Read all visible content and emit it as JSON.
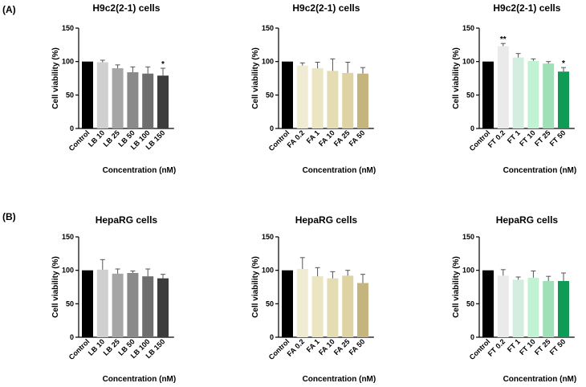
{
  "figure": {
    "row_labels": [
      "(A)",
      "(B)"
    ]
  },
  "chart_data": [
    {
      "type": "bar",
      "row": "A",
      "col": 0,
      "title": "H9c2(2-1) cells",
      "xlabel": "Concentration (nM)",
      "ylabel": "Cell viability (%)",
      "ylim": [
        0,
        150
      ],
      "yticks": [
        0,
        50,
        100,
        150
      ],
      "categories": [
        "Control",
        "LB 10",
        "LB 25",
        "LB 50",
        "LB 100",
        "LB 150"
      ],
      "values": [
        100,
        99,
        90,
        84,
        82,
        79
      ],
      "errors": [
        0,
        3,
        5,
        8,
        10,
        11
      ],
      "significance": [
        "",
        "",
        "",
        "",
        "",
        "*"
      ],
      "colors": [
        "#000000",
        "#d0d0d0",
        "#a6a6a6",
        "#8a8a8a",
        "#6e6e6e",
        "#3c3c3c"
      ]
    },
    {
      "type": "bar",
      "row": "A",
      "col": 1,
      "title": "H9c2(2-1) cells",
      "xlabel": "Concentration (nM)",
      "ylabel": "Cell viability (%)",
      "ylim": [
        0,
        150
      ],
      "yticks": [
        0,
        50,
        100,
        150
      ],
      "categories": [
        "Control",
        "FA 0.2",
        "FA 1",
        "FA 10",
        "FA 25",
        "FA 50"
      ],
      "values": [
        100,
        94,
        90,
        86,
        83,
        82
      ],
      "errors": [
        0,
        4,
        9,
        18,
        16,
        9
      ],
      "significance": [
        "",
        "",
        "",
        "",
        "",
        ""
      ],
      "colors": [
        "#000000",
        "#f0ecd4",
        "#ebe5c2",
        "#e4dcb2",
        "#ddd3a3",
        "#c6b47e"
      ]
    },
    {
      "type": "bar",
      "row": "A",
      "col": 2,
      "title": "H9c2(2-1) cells",
      "xlabel": "Concentration (nM)",
      "ylabel": "Cell viability (%)",
      "ylim": [
        0,
        150
      ],
      "yticks": [
        0,
        50,
        100,
        150
      ],
      "categories": [
        "Control",
        "FT 0.2",
        "FT 1",
        "FT 10",
        "FT 25",
        "FT 50"
      ],
      "values": [
        100,
        123,
        106,
        101,
        97,
        85
      ],
      "errors": [
        0,
        4,
        6,
        3,
        3,
        6
      ],
      "significance": [
        "",
        "**",
        "",
        "",
        "",
        "*"
      ],
      "colors": [
        "#000000",
        "#eaeaea",
        "#d3eee0",
        "#c2f2d4",
        "#9fe0b7",
        "#0f9b56"
      ]
    },
    {
      "type": "bar",
      "row": "B",
      "col": 0,
      "title": "HepaRG cells",
      "xlabel": "Concentration (nM)",
      "ylabel": "Cell viability (%)",
      "ylim": [
        0,
        150
      ],
      "yticks": [
        0,
        50,
        100,
        150
      ],
      "categories": [
        "Control",
        "LB 10",
        "LB 25",
        "LB 50",
        "LB 100",
        "LB 150"
      ],
      "values": [
        100,
        101,
        95,
        96,
        91,
        88
      ],
      "errors": [
        0,
        15,
        7,
        3,
        11,
        6
      ],
      "significance": [
        "",
        "",
        "",
        "",
        "",
        ""
      ],
      "colors": [
        "#000000",
        "#d0d0d0",
        "#a6a6a6",
        "#8a8a8a",
        "#6e6e6e",
        "#3c3c3c"
      ]
    },
    {
      "type": "bar",
      "row": "B",
      "col": 1,
      "title": "HepaRG cells",
      "xlabel": "Concentration (nM)",
      "ylabel": "Cell viability (%)",
      "ylim": [
        0,
        150
      ],
      "yticks": [
        0,
        50,
        100,
        150
      ],
      "categories": [
        "Control",
        "FA 0.2",
        "FA 1",
        "FA 10",
        "FA 25",
        "FA 50"
      ],
      "values": [
        100,
        102,
        91,
        88,
        92,
        81
      ],
      "errors": [
        0,
        17,
        13,
        10,
        8,
        13
      ],
      "significance": [
        "",
        "",
        "",
        "",
        "",
        ""
      ],
      "colors": [
        "#000000",
        "#f0ecd4",
        "#ebe5c2",
        "#e4dcb2",
        "#ddd3a3",
        "#c6b47e"
      ]
    },
    {
      "type": "bar",
      "row": "B",
      "col": 2,
      "title": "HepaRG cells",
      "xlabel": "Concentration (nM)",
      "ylabel": "Cell viability (%)",
      "ylim": [
        0,
        150
      ],
      "yticks": [
        0,
        50,
        100,
        150
      ],
      "categories": [
        "Control",
        "FT 0.2",
        "FT 1",
        "FT 10",
        "FT 25",
        "FT 50"
      ],
      "values": [
        100,
        92,
        86,
        89,
        84,
        84
      ],
      "errors": [
        0,
        9,
        4,
        10,
        7,
        12
      ],
      "significance": [
        "",
        "",
        "",
        "",
        "",
        ""
      ],
      "colors": [
        "#000000",
        "#eaeaea",
        "#d3eee0",
        "#c2f2d4",
        "#9fe0b7",
        "#0f9b56"
      ]
    }
  ]
}
